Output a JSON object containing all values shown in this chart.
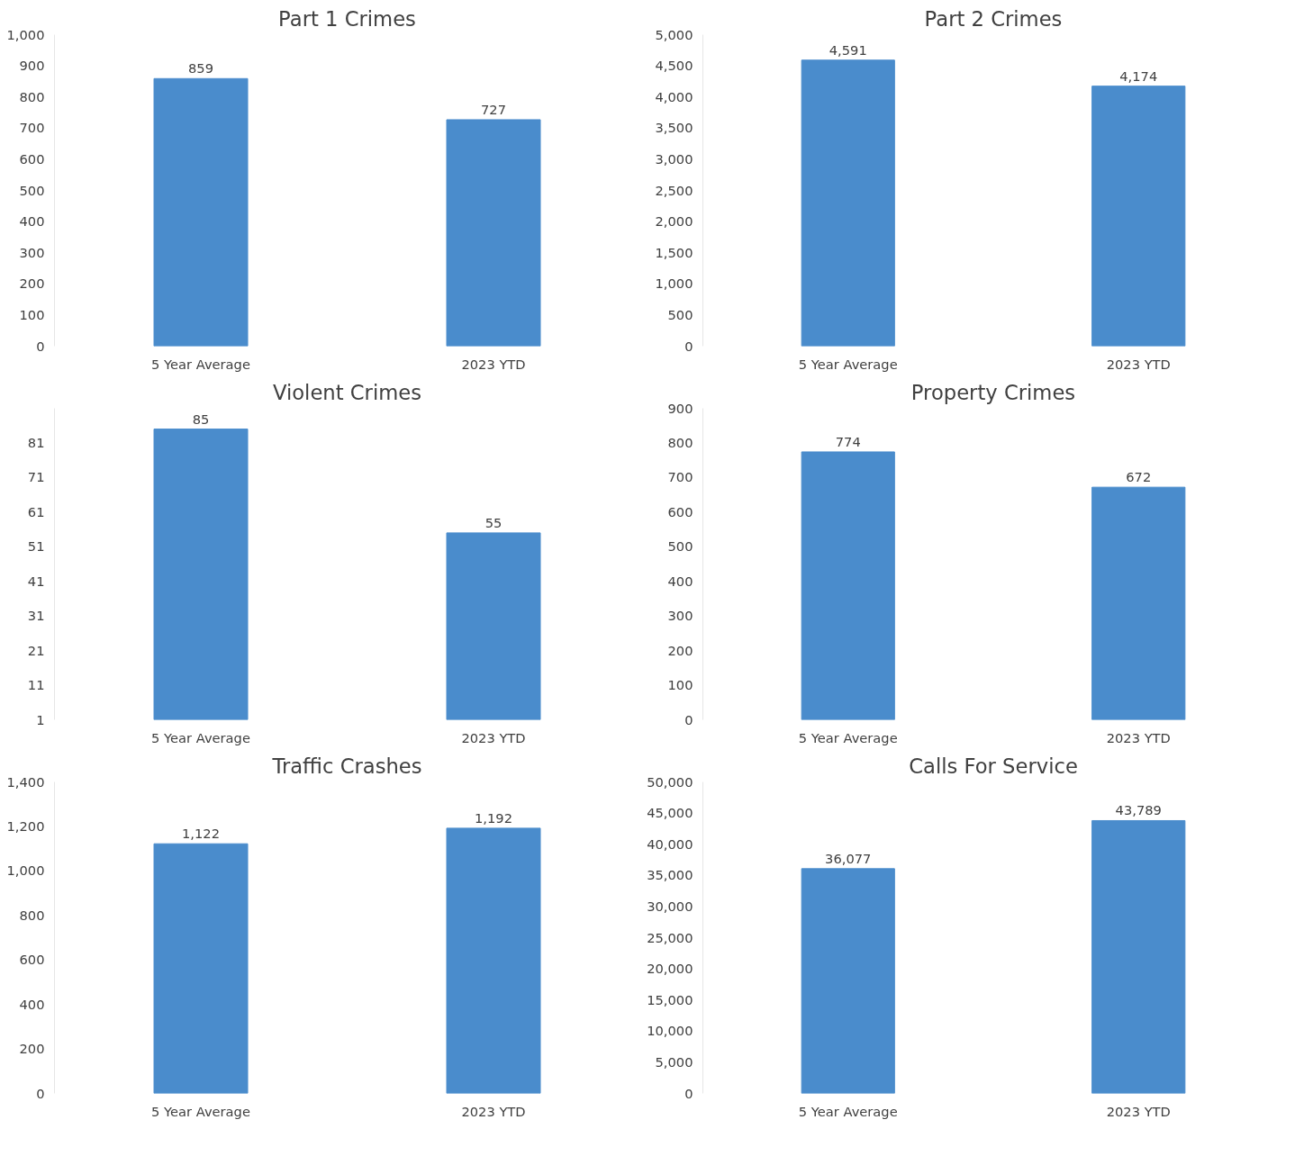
{
  "chart_data": [
    {
      "type": "bar",
      "title": "Part 1 Crimes",
      "categories": [
        "5 Year Average",
        "2023 YTD"
      ],
      "values": [
        859,
        727
      ],
      "value_labels": [
        "859",
        "727"
      ],
      "color": "#4a8ccc",
      "ylim": [
        0,
        1000
      ],
      "yticks": [
        0,
        100,
        200,
        300,
        400,
        500,
        600,
        700,
        800,
        900,
        {
          "value": 1000,
          "label": "1,000"
        }
      ],
      "grid": false,
      "legend": false
    },
    {
      "type": "bar",
      "title": "Part 2 Crimes",
      "categories": [
        "5 Year Average",
        "2023 YTD"
      ],
      "values": [
        4591,
        4174
      ],
      "value_labels": [
        "4,591",
        "4,174"
      ],
      "color": "#4a8ccc",
      "ylim": [
        0,
        5000
      ],
      "yticks": [
        0,
        500,
        {
          "value": 1000,
          "label": "1,000"
        },
        {
          "value": 1500,
          "label": "1,500"
        },
        {
          "value": 2000,
          "label": "2,000"
        },
        {
          "value": 2500,
          "label": "2,500"
        },
        {
          "value": 3000,
          "label": "3,000"
        },
        {
          "value": 3500,
          "label": "3,500"
        },
        {
          "value": 4000,
          "label": "4,000"
        },
        {
          "value": 4500,
          "label": "4,500"
        },
        {
          "value": 5000,
          "label": "5,000"
        }
      ],
      "grid": false,
      "legend": false
    },
    {
      "type": "bar",
      "title": "Violent Crimes",
      "categories": [
        "5 Year Average",
        "2023 YTD"
      ],
      "values": [
        85,
        55
      ],
      "value_labels": [
        "85",
        "55"
      ],
      "color": "#4a8ccc",
      "ylim": [
        1,
        91
      ],
      "yticks": [
        1,
        11,
        21,
        31,
        41,
        51,
        61,
        71,
        81
      ],
      "grid": false,
      "legend": false
    },
    {
      "type": "bar",
      "title": "Property Crimes",
      "categories": [
        "5 Year Average",
        "2023 YTD"
      ],
      "values": [
        774,
        672
      ],
      "value_labels": [
        "774",
        "672"
      ],
      "color": "#4a8ccc",
      "ylim": [
        0,
        900
      ],
      "yticks": [
        0,
        100,
        200,
        300,
        400,
        500,
        600,
        700,
        800,
        900
      ],
      "grid": false,
      "legend": false
    },
    {
      "type": "bar",
      "title": "Traffic Crashes",
      "categories": [
        "5 Year Average",
        "2023 YTD"
      ],
      "values": [
        1122,
        1192
      ],
      "value_labels": [
        "1,122",
        "1,192"
      ],
      "color": "#4a8ccc",
      "ylim": [
        0,
        1400
      ],
      "yticks": [
        0,
        200,
        400,
        600,
        800,
        {
          "value": 1000,
          "label": "1,000"
        },
        {
          "value": 1200,
          "label": "1,200"
        },
        {
          "value": 1400,
          "label": "1,400"
        }
      ],
      "grid": false,
      "legend": false
    },
    {
      "type": "bar",
      "title": "Calls For Service",
      "categories": [
        "5 Year Average",
        "2023 YTD"
      ],
      "values": [
        36077,
        43789
      ],
      "value_labels": [
        "36,077",
        "43,789"
      ],
      "color": "#4a8ccc",
      "ylim": [
        0,
        50000
      ],
      "yticks": [
        0,
        {
          "value": 5000,
          "label": "5,000"
        },
        {
          "value": 10000,
          "label": "10,000"
        },
        {
          "value": 15000,
          "label": "15,000"
        },
        {
          "value": 20000,
          "label": "20,000"
        },
        {
          "value": 25000,
          "label": "25,000"
        },
        {
          "value": 30000,
          "label": "30,000"
        },
        {
          "value": 35000,
          "label": "35,000"
        },
        {
          "value": 40000,
          "label": "40,000"
        },
        {
          "value": 45000,
          "label": "45,000"
        },
        {
          "value": 50000,
          "label": "50,000"
        }
      ],
      "grid": false,
      "legend": false
    }
  ]
}
